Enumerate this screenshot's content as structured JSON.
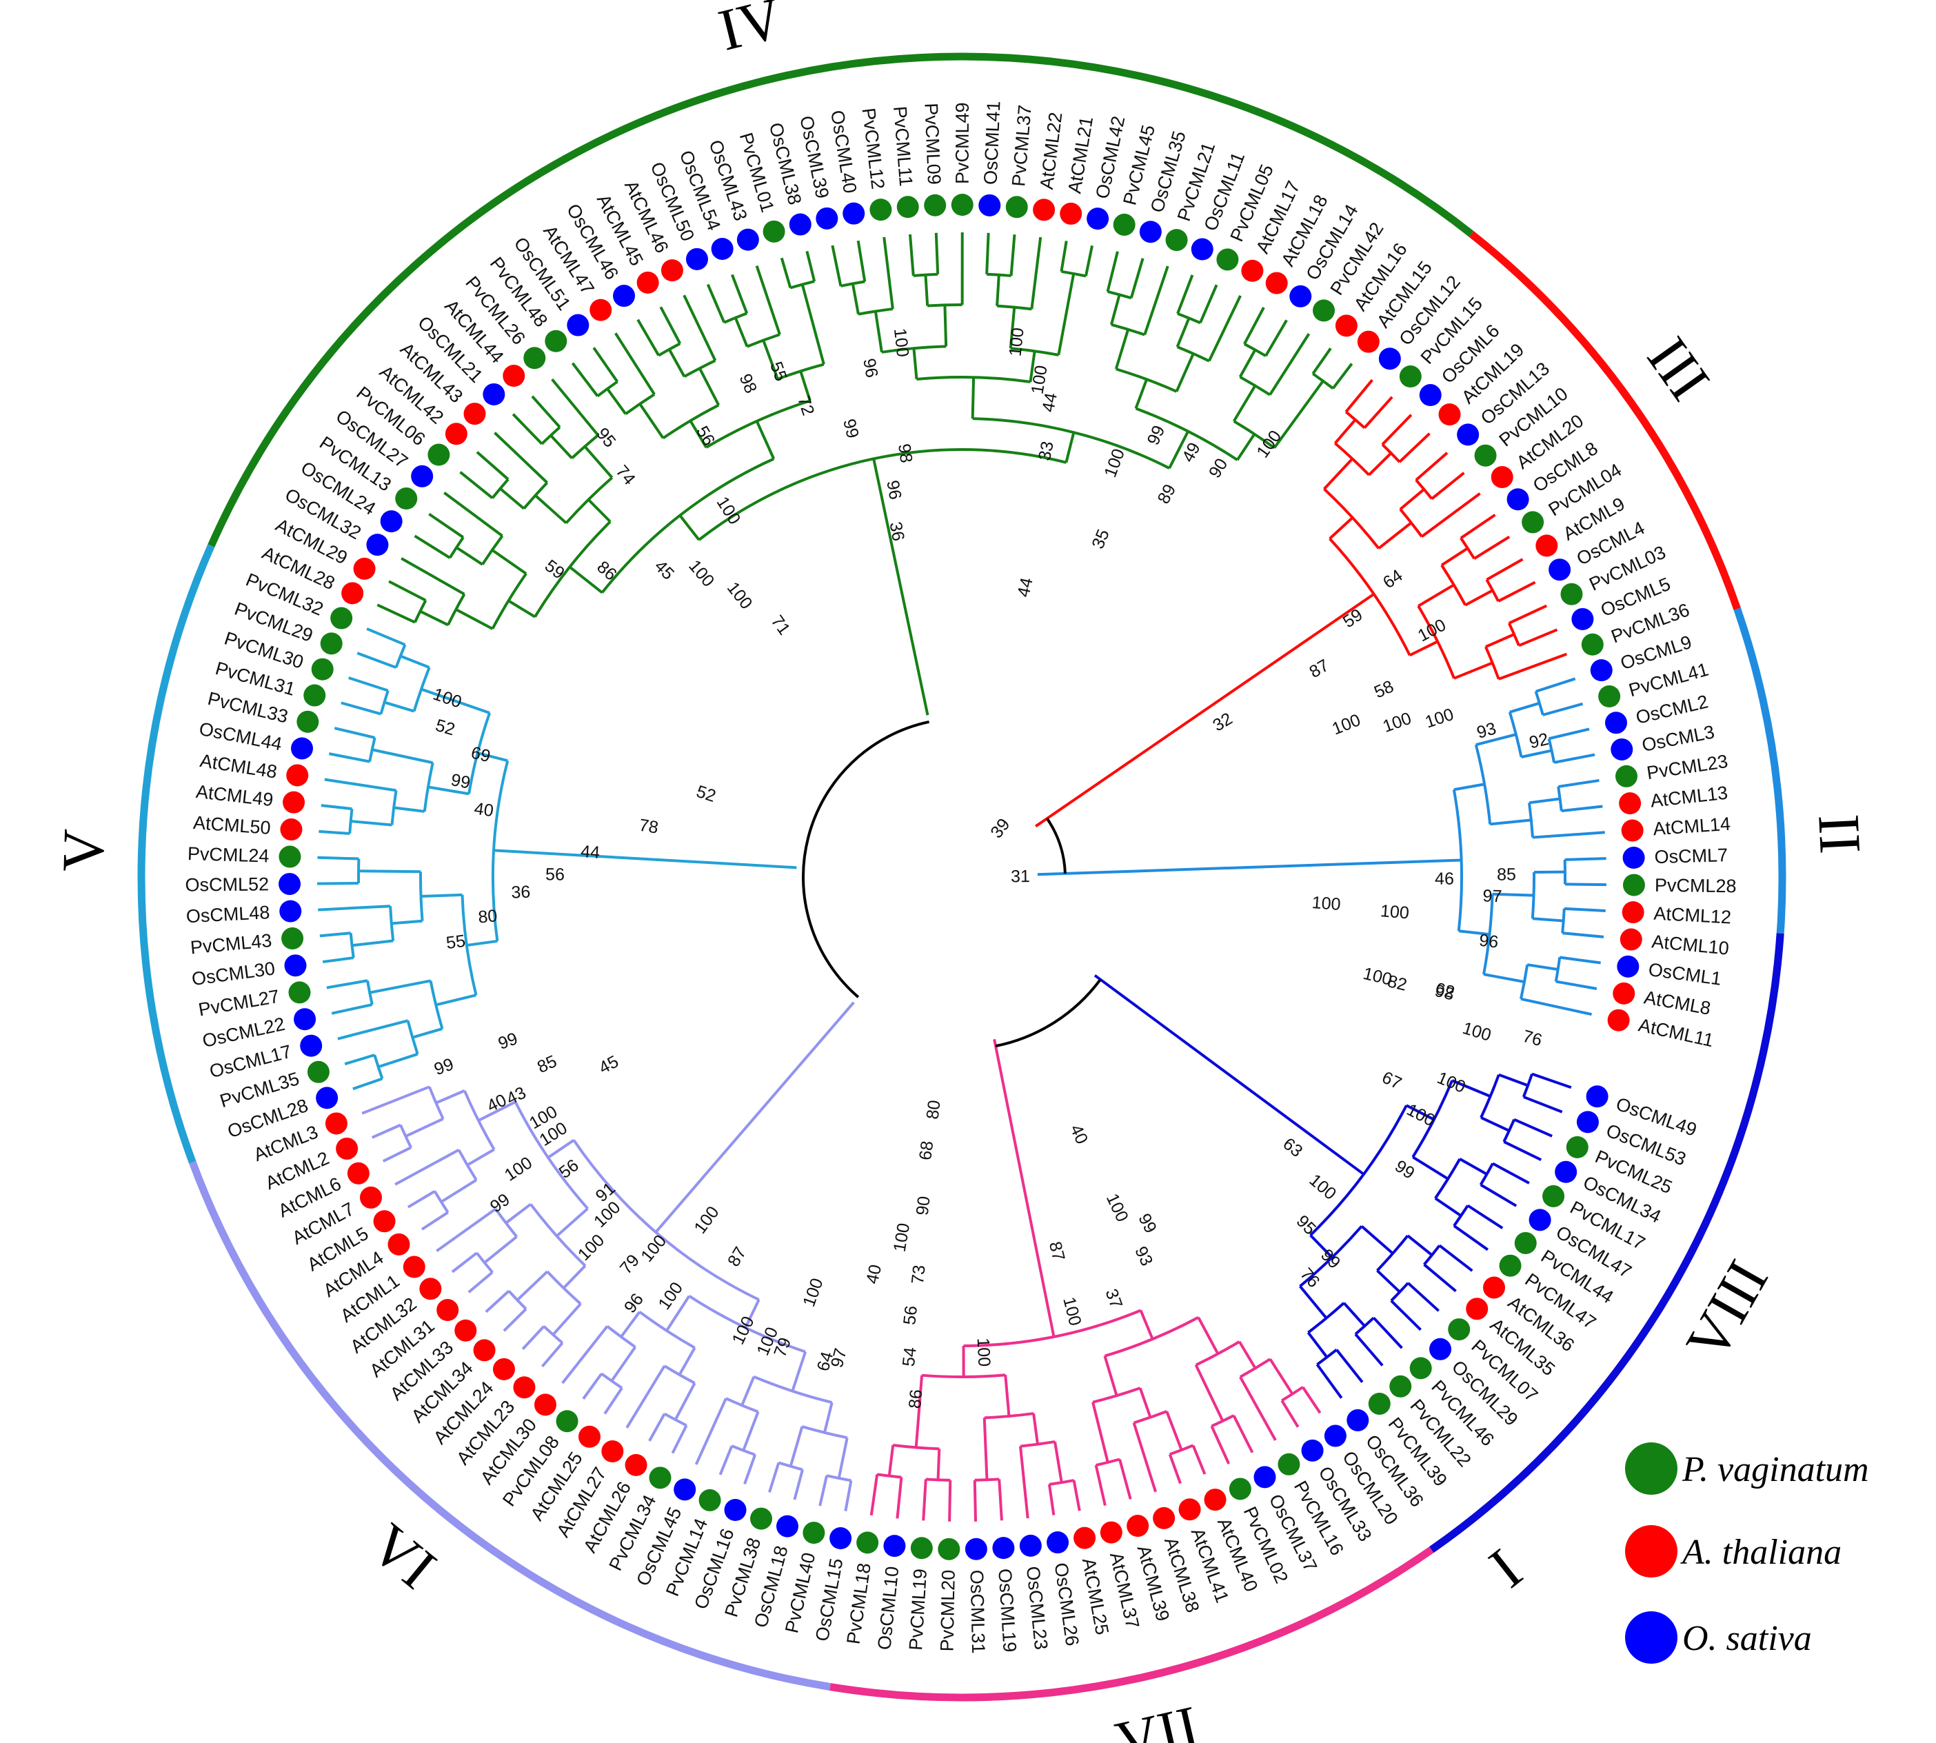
{
  "species_legend": [
    {
      "label": "P. vaginatum",
      "color": "#138013"
    },
    {
      "label": "A. thaliana",
      "color": "#ff0000"
    },
    {
      "label": "O. sativa",
      "color": "#0000ff"
    }
  ],
  "species_colors": {
    "Pv": "#138013",
    "At": "#ff0000",
    "Os": "#0000ff"
  },
  "groups": [
    {
      "label": "I",
      "color": "#f28a83",
      "start": -33,
      "end": 0
    },
    {
      "label": "II",
      "color": "#1f8ce0",
      "start": 0,
      "end": 14
    },
    {
      "label": "III",
      "color": "#ff0a0a",
      "start": 14,
      "end": 28
    },
    {
      "label": "IV",
      "color": "#158015",
      "start": 28,
      "end": 73
    },
    {
      "label": "V",
      "color": "#22a1d6",
      "start": 73,
      "end": 92
    },
    {
      "label": "VI",
      "color": "#9393f0",
      "start": 92,
      "end": 118
    },
    {
      "label": "VII",
      "color": "#ee2f8c",
      "start": 118,
      "end": 137
    },
    {
      "label": "VIII",
      "color": "#0a0ad9",
      "start": 137,
      "end": 159
    }
  ],
  "leaves": [
    "AtCML11",
    "AtCML8",
    "OsCML1",
    "AtCML10",
    "AtCML12",
    "PvCML28",
    "OsCML7",
    "AtCML14",
    "AtCML13",
    "PvCML23",
    "OsCML3",
    "OsCML2",
    "PvCML41",
    "OsCML9",
    "PvCML36",
    "OsCML5",
    "PvCML03",
    "OsCML4",
    "AtCML9",
    "PvCML04",
    "OsCML8",
    "AtCML20",
    "PvCML10",
    "OsCML13",
    "AtCML19",
    "OsCML6",
    "PvCML15",
    "OsCML12",
    "AtCML15",
    "AtCML16",
    "PvCML42",
    "OsCML14",
    "AtCML18",
    "AtCML17",
    "PvCML05",
    "OsCML11",
    "PvCML21",
    "OsCML35",
    "PvCML45",
    "OsCML42",
    "AtCML21",
    "AtCML22",
    "PvCML37",
    "OsCML41",
    "PvCML49",
    "PvCML09",
    "PvCML11",
    "PvCML12",
    "OsCML40",
    "OsCML39",
    "OsCML38",
    "PvCML01",
    "OsCML43",
    "OsCML54",
    "OsCML50",
    "AtCML46",
    "AtCML45",
    "OsCML46",
    "AtCML47",
    "OsCML51",
    "PvCML48",
    "PvCML26",
    "AtCML44",
    "OsCML21",
    "AtCML43",
    "AtCML42",
    "PvCML06",
    "OsCML27",
    "PvCML13",
    "OsCML24",
    "OsCML32",
    "AtCML29",
    "AtCML28",
    "PvCML32",
    "PvCML29",
    "PvCML30",
    "PvCML31",
    "PvCML33",
    "OsCML44",
    "AtCML48",
    "AtCML49",
    "AtCML50",
    "PvCML24",
    "OsCML52",
    "OsCML48",
    "PvCML43",
    "OsCML30",
    "PvCML27",
    "OsCML22",
    "OsCML17",
    "PvCML35",
    "OsCML28",
    "AtCML3",
    "AtCML2",
    "AtCML6",
    "AtCML7",
    "AtCML5",
    "AtCML4",
    "AtCML1",
    "AtCML32",
    "AtCML31",
    "AtCML33",
    "AtCML34",
    "AtCML24",
    "AtCML23",
    "AtCML30",
    "PvCML08",
    "AtCML25",
    "AtCML27",
    "AtCML26",
    "PvCML34",
    "OsCML45",
    "PvCML14",
    "OsCML16",
    "PvCML38",
    "OsCML18",
    "PvCML40",
    "OsCML15",
    "PvCML18",
    "OsCML10",
    "PvCML19",
    "PvCML20",
    "OsCML31",
    "OsCML19",
    "OsCML23",
    "OsCML26",
    "AtCML25",
    "AtCML37",
    "AtCML39",
    "AtCML38",
    "AtCML41",
    "AtCML40",
    "PvCML02",
    "OsCML37",
    "PvCML16",
    "OsCML33",
    "OsCML20",
    "OsCML36",
    "PvCML39",
    "PvCML22",
    "PvCML46",
    "OsCML29",
    "PvCML07",
    "AtCML35",
    "AtCML36",
    "PvCML47",
    "PvCML44",
    "OsCML47",
    "PvCML17",
    "OsCML34",
    "PvCML25",
    "OsCML53",
    "OsCML49"
  ],
  "bootstrap_values": [
    {
      "value": "99",
      "group": "I",
      "pos": -30.5,
      "r": 800
    },
    {
      "value": "40",
      "group": "I",
      "pos": -28,
      "r": 750
    },
    {
      "value": "100",
      "group": "I",
      "pos": -26.3,
      "r": 700
    },
    {
      "value": "100",
      "group": "I",
      "pos": -24.8,
      "r": 770
    },
    {
      "value": "99",
      "group": "I",
      "pos": -24,
      "r": 820
    },
    {
      "value": "91",
      "group": "I",
      "pos": -21.3,
      "r": 690
    },
    {
      "value": "100",
      "group": "I",
      "pos": -19.8,
      "r": 760
    },
    {
      "value": "100",
      "group": "I",
      "pos": -17.5,
      "r": 700
    },
    {
      "value": "96",
      "group": "I",
      "pos": -16.6,
      "r": 780
    },
    {
      "value": "100",
      "group": "I",
      "pos": -16.2,
      "r": 620
    },
    {
      "value": "100",
      "group": "I",
      "pos": -10.2,
      "r": 730
    },
    {
      "value": "97",
      "group": "I",
      "pos": -6.6,
      "r": 720
    },
    {
      "value": "40",
      "group": "I",
      "pos": -5.8,
      "r": 590
    },
    {
      "value": "100",
      "group": "I",
      "pos": -4.5,
      "r": 530
    },
    {
      "value": "85",
      "group": "II",
      "pos": 5.4,
      "r": 790
    },
    {
      "value": "97",
      "group": "II",
      "pos": 4.4,
      "r": 770
    },
    {
      "value": "46",
      "group": "II",
      "pos": 5.2,
      "r": 700
    },
    {
      "value": "96",
      "group": "II",
      "pos": 2.3,
      "r": 770
    },
    {
      "value": "100",
      "group": "II",
      "pos": 3.3,
      "r": 630
    },
    {
      "value": "100",
      "group": "II",
      "pos": 3.5,
      "r": 530
    },
    {
      "value": "62",
      "group": "II",
      "pos": -0.4,
      "r": 720
    },
    {
      "value": "100",
      "group": "II",
      "pos": -0.5,
      "r": 620
    },
    {
      "value": "76",
      "group": "II",
      "pos": -1.5,
      "r": 860
    },
    {
      "value": "31",
      "group": "II",
      "pos": 5.5,
      "r": 85
    },
    {
      "value": "92",
      "group": "III",
      "pos": -3.0,
      "r": 860
    },
    {
      "value": "93",
      "group": "III",
      "pos": -2.0,
      "r": 790
    },
    {
      "value": "100",
      "group": "III",
      "pos": -0.8,
      "r": 730
    },
    {
      "value": "100",
      "group": "III",
      "pos": -0.3,
      "r": 670
    },
    {
      "value": "100",
      "group": "III",
      "pos": 0.6,
      "r": 600
    },
    {
      "value": "58",
      "group": "III",
      "pos": 1.6,
      "r": 670
    },
    {
      "value": "100",
      "group": "III",
      "pos": 3.2,
      "r": 770
    },
    {
      "value": "59",
      "group": "III",
      "pos": 5.7,
      "r": 680
    },
    {
      "value": "87",
      "group": "III",
      "pos": 4.3,
      "r": 600
    },
    {
      "value": "64",
      "group": "III",
      "pos": 6.2,
      "r": 760
    },
    {
      "value": "32",
      "group": "III",
      "pos": 4.5,
      "r": 440
    },
    {
      "value": "39",
      "group": "III",
      "pos": 13.5,
      "r": 90
    },
    {
      "value": "100",
      "group": "IV",
      "pos": 0.8,
      "r": 770
    },
    {
      "value": "90",
      "group": "IV",
      "pos": 2.2,
      "r": 700
    },
    {
      "value": "49",
      "group": "IV",
      "pos": 3.8,
      "r": 700
    },
    {
      "value": "89",
      "group": "IV",
      "pos": 3.9,
      "r": 630
    },
    {
      "value": "99",
      "group": "IV",
      "pos": 5.8,
      "r": 700
    },
    {
      "value": "100",
      "group": "IV",
      "pos": 7.3,
      "r": 640
    },
    {
      "value": "35",
      "group": "IV",
      "pos": 6.4,
      "r": 530
    },
    {
      "value": "33",
      "group": "IV",
      "pos": 11.2,
      "r": 630
    },
    {
      "value": "44",
      "group": "IV",
      "pos": 11.5,
      "r": 700
    },
    {
      "value": "100",
      "group": "IV",
      "pos": 13.5,
      "r": 780
    },
    {
      "value": "100",
      "group": "IV",
      "pos": 12.2,
      "r": 730
    },
    {
      "value": "44",
      "group": "IV",
      "pos": 10.7,
      "r": 430
    },
    {
      "value": "100",
      "group": "IV",
      "pos": 18.8,
      "r": 780
    },
    {
      "value": "96",
      "group": "IV",
      "pos": 20.4,
      "r": 750
    },
    {
      "value": "98",
      "group": "IV",
      "pos": 19.3,
      "r": 620
    },
    {
      "value": "96",
      "group": "IV",
      "pos": 20.3,
      "r": 570
    },
    {
      "value": "36",
      "group": "IV",
      "pos": 20.6,
      "r": 510
    },
    {
      "value": "99",
      "group": "IV",
      "pos": 22,
      "r": 670
    },
    {
      "value": "72",
      "group": "IV",
      "pos": 23.9,
      "r": 720
    },
    {
      "value": "55",
      "group": "IV",
      "pos": 24.6,
      "r": 780
    },
    {
      "value": "98",
      "group": "IV",
      "pos": 26.1,
      "r": 780
    },
    {
      "value": "56",
      "group": "IV",
      "pos": 29.0,
      "r": 740
    },
    {
      "value": "100",
      "group": "IV",
      "pos": 30.0,
      "r": 630
    },
    {
      "value": "71",
      "group": "IV",
      "pos": 31.4,
      "r": 450
    },
    {
      "value": "95",
      "group": "IV",
      "pos": 32.8,
      "r": 820
    },
    {
      "value": "74",
      "group": "IV",
      "pos": 33.2,
      "r": 760
    },
    {
      "value": "100",
      "group": "IV",
      "pos": 32.5,
      "r": 520
    },
    {
      "value": "100",
      "group": "IV",
      "pos": 33.5,
      "r": 580
    },
    {
      "value": "45",
      "group": "IV",
      "pos": 35,
      "r": 620
    },
    {
      "value": "86",
      "group": "IV",
      "pos": 37.2,
      "r": 680
    },
    {
      "value": "59",
      "group": "IV",
      "pos": 38.8,
      "r": 740
    },
    {
      "value": "52",
      "group": "V",
      "pos": 2,
      "r": 390
    },
    {
      "value": "78",
      "group": "V",
      "pos": 5.8,
      "r": 460
    },
    {
      "value": "100",
      "group": "V",
      "pos": 1.5,
      "r": 790
    },
    {
      "value": "52",
      "group": "V",
      "pos": 2.8,
      "r": 780
    },
    {
      "value": "69",
      "group": "V",
      "pos": 3.6,
      "r": 720
    },
    {
      "value": "99",
      "group": "V",
      "pos": 5.1,
      "r": 740
    },
    {
      "value": "40",
      "group": "V",
      "pos": 6.3,
      "r": 700
    },
    {
      "value": "44",
      "group": "V",
      "pos": 8.1,
      "r": 540
    },
    {
      "value": "56",
      "group": "V",
      "pos": 9.6,
      "r": 590
    },
    {
      "value": "36",
      "group": "V",
      "pos": 10.6,
      "r": 640
    },
    {
      "value": "80",
      "group": "V",
      "pos": 11.8,
      "r": 690
    },
    {
      "value": "55",
      "group": "V",
      "pos": 12.9,
      "r": 740
    },
    {
      "value": "99",
      "group": "VI",
      "pos": -0.7,
      "r": 700
    },
    {
      "value": "85",
      "group": "VI",
      "pos": 1.2,
      "r": 660
    },
    {
      "value": "43",
      "group": "VI",
      "pos": 2.0,
      "r": 720
    },
    {
      "value": "45",
      "group": "VI",
      "pos": 2.8,
      "r": 580
    },
    {
      "value": "100",
      "group": "VI",
      "pos": 4.6,
      "r": 700
    },
    {
      "value": "56",
      "group": "VI",
      "pos": 6.5,
      "r": 710
    },
    {
      "value": "100",
      "group": "VI",
      "pos": 9.5,
      "r": 710
    },
    {
      "value": "79",
      "group": "VI",
      "pos": 12.0,
      "r": 740
    },
    {
      "value": "100",
      "group": "VI",
      "pos": 14.5,
      "r": 740
    },
    {
      "value": "87",
      "group": "VI",
      "pos": 16.3,
      "r": 640
    },
    {
      "value": "100",
      "group": "VI",
      "pos": 18.4,
      "r": 730
    },
    {
      "value": "79",
      "group": "VI",
      "pos": 20.5,
      "r": 730
    },
    {
      "value": "100",
      "group": "VI",
      "pos": 21.0,
      "r": 640
    },
    {
      "value": "64",
      "group": "VI",
      "pos": 22.7,
      "r": 730
    },
    {
      "value": "86",
      "group": "VII",
      "pos": 1.3,
      "r": 760
    },
    {
      "value": "54",
      "group": "VII",
      "pos": 0.8,
      "r": 700
    },
    {
      "value": "56",
      "group": "VII",
      "pos": 0.6,
      "r": 640
    },
    {
      "value": "73",
      "group": "VII",
      "pos": 0.8,
      "r": 580
    },
    {
      "value": "90",
      "group": "VII",
      "pos": 0.6,
      "r": 480
    },
    {
      "value": "68",
      "group": "VII",
      "pos": 0.3,
      "r": 400
    },
    {
      "value": "80",
      "group": "VII",
      "pos": 0.5,
      "r": 340
    },
    {
      "value": "100",
      "group": "VII",
      "pos": 4.6,
      "r": 690
    },
    {
      "value": "100",
      "group": "VII",
      "pos": 9.6,
      "r": 650
    },
    {
      "value": "87",
      "group": "VII",
      "pos": 9.6,
      "r": 560
    },
    {
      "value": "37",
      "group": "VII",
      "pos": 12.0,
      "r": 650
    },
    {
      "value": "93",
      "group": "VII",
      "pos": 14.5,
      "r": 610
    },
    {
      "value": "100",
      "group": "VII",
      "pos": 14.3,
      "r": 530
    },
    {
      "value": "99",
      "group": "VII",
      "pos": 15.6,
      "r": 570
    },
    {
      "value": "40",
      "group": "VII",
      "pos": 14.0,
      "r": 410
    },
    {
      "value": "76",
      "group": "VIII",
      "pos": 2.1,
      "r": 770
    },
    {
      "value": "99",
      "group": "VIII",
      "pos": 3.4,
      "r": 770
    },
    {
      "value": "95",
      "group": "VIII",
      "pos": 3.7,
      "r": 710
    },
    {
      "value": "100",
      "group": "VIII",
      "pos": 5.7,
      "r": 690
    },
    {
      "value": "63",
      "group": "VIII",
      "pos": 6.3,
      "r": 620
    },
    {
      "value": "99",
      "group": "VIII",
      "pos": 8.8,
      "r": 770
    },
    {
      "value": "100",
      "group": "VIII",
      "pos": 11.4,
      "r": 750
    },
    {
      "value": "67",
      "group": "VIII",
      "pos": 12.3,
      "r": 690
    },
    {
      "value": "100",
      "group": "VIII",
      "pos": 13.4,
      "r": 770
    },
    {
      "value": "100",
      "group": "VIII",
      "pos": 16.0,
      "r": 780
    },
    {
      "value": "98",
      "group": "VIII",
      "pos": 17.4,
      "r": 720
    },
    {
      "value": "82",
      "group": "VIII",
      "pos": 17.3,
      "r": 650
    }
  ]
}
